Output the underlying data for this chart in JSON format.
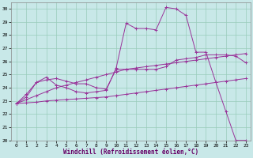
{
  "xlabel": "Windchill (Refroidissement éolien,°C)",
  "background_color": "#c8e8e8",
  "grid_color": "#99ccbb",
  "line_color": "#993399",
  "xlim": [
    -0.5,
    23.5
  ],
  "ylim": [
    20,
    30.5
  ],
  "yticks": [
    20,
    21,
    22,
    23,
    24,
    25,
    26,
    27,
    28,
    29,
    30
  ],
  "xticks": [
    0,
    1,
    2,
    3,
    4,
    5,
    6,
    7,
    8,
    9,
    10,
    11,
    12,
    13,
    14,
    15,
    16,
    17,
    18,
    19,
    20,
    21,
    22,
    23
  ],
  "series": {
    "line1": {
      "x": [
        0,
        1,
        2,
        3,
        4,
        5,
        6,
        7,
        8,
        9,
        10,
        11,
        12,
        13,
        14,
        15,
        16,
        17,
        18,
        19,
        20,
        21,
        22,
        23
      ],
      "y": [
        22.8,
        23.3,
        24.4,
        24.8,
        24.2,
        24.0,
        23.7,
        23.6,
        23.7,
        23.8,
        25.5,
        28.9,
        28.5,
        28.5,
        28.4,
        30.1,
        30.0,
        29.5,
        26.7,
        26.7,
        24.4,
        22.2,
        20.0,
        20.0
      ]
    },
    "line2": {
      "x": [
        0,
        1,
        2,
        3,
        4,
        5,
        6,
        7,
        8,
        9,
        10,
        11,
        12,
        13,
        14,
        15,
        16,
        17,
        18,
        19,
        20,
        21,
        22,
        23
      ],
      "y": [
        22.8,
        22.85,
        22.9,
        23.0,
        23.05,
        23.1,
        23.15,
        23.2,
        23.25,
        23.3,
        23.4,
        23.5,
        23.6,
        23.7,
        23.8,
        23.9,
        24.0,
        24.1,
        24.2,
        24.3,
        24.4,
        24.5,
        24.6,
        24.7
      ]
    },
    "line3": {
      "x": [
        0,
        1,
        2,
        3,
        4,
        5,
        6,
        7,
        8,
        9,
        10,
        11,
        12,
        13,
        14,
        15,
        16,
        17,
        18,
        19,
        20,
        21,
        22,
        23
      ],
      "y": [
        22.8,
        23.1,
        23.4,
        23.7,
        24.0,
        24.2,
        24.4,
        24.6,
        24.8,
        25.0,
        25.2,
        25.4,
        25.5,
        25.6,
        25.7,
        25.8,
        25.9,
        26.0,
        26.1,
        26.2,
        26.3,
        26.4,
        26.5,
        26.6
      ]
    },
    "line4": {
      "x": [
        0,
        1,
        2,
        3,
        4,
        5,
        6,
        7,
        8,
        9,
        10,
        11,
        12,
        13,
        14,
        15,
        16,
        17,
        18,
        19,
        20,
        21,
        22,
        23
      ],
      "y": [
        22.8,
        23.5,
        24.4,
        24.6,
        24.7,
        24.5,
        24.3,
        24.3,
        24.0,
        23.9,
        25.4,
        25.4,
        25.4,
        25.4,
        25.4,
        25.6,
        26.1,
        26.2,
        26.3,
        26.5,
        26.5,
        26.5,
        26.4,
        25.9
      ]
    }
  },
  "figsize": [
    3.2,
    2.0
  ],
  "dpi": 100
}
